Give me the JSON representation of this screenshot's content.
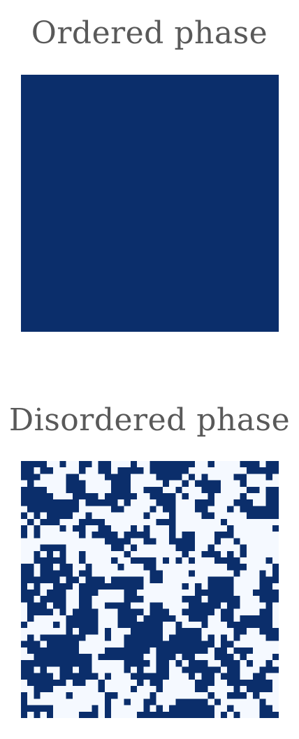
{
  "colors": {
    "spin_up": "#0b2e6b",
    "spin_down": "#f5f9ff",
    "title_text": "#595959"
  },
  "panels": [
    {
      "title": "Ordered phase",
      "grid": {
        "rows": 40,
        "cols": 40,
        "state": "all-spin-up"
      }
    },
    {
      "title": "Disordered phase",
      "grid": {
        "rows": 40,
        "cols": 40,
        "state": "random-spins"
      }
    }
  ]
}
